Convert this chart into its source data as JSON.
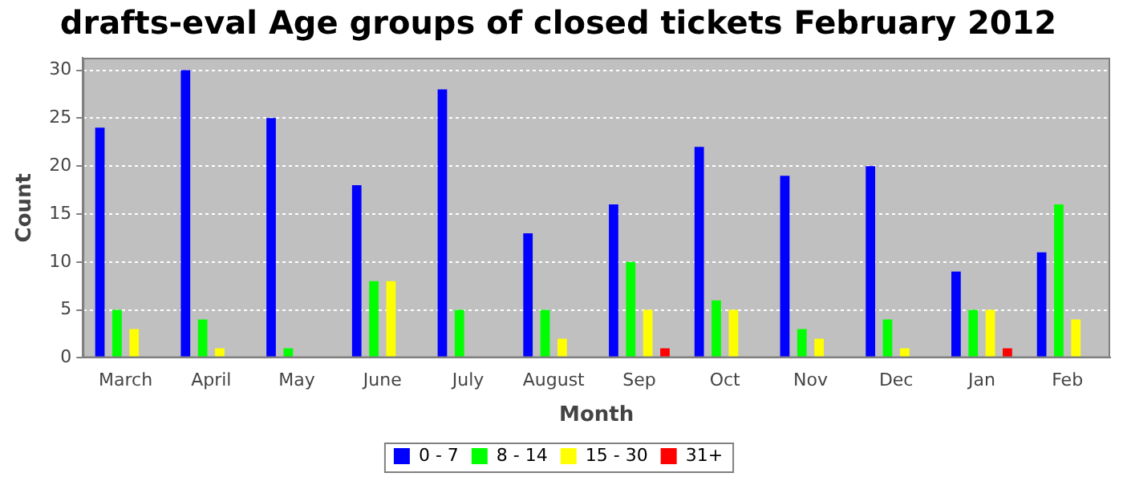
{
  "chart_data": {
    "type": "bar",
    "title": "drafts-eval Age groups of closed tickets February 2012",
    "xlabel": "Month",
    "ylabel": "Count",
    "categories": [
      "March",
      "April",
      "May",
      "June",
      "July",
      "August",
      "Sep",
      "Oct",
      "Nov",
      "Dec",
      "Jan",
      "Feb"
    ],
    "series": [
      {
        "name": "0 - 7",
        "color": "#0000ff",
        "values": [
          24,
          30,
          25,
          18,
          28,
          13,
          16,
          22,
          19,
          20,
          9,
          11
        ]
      },
      {
        "name": "8 - 14",
        "color": "#00ff00",
        "values": [
          5,
          4,
          1,
          8,
          5,
          5,
          10,
          6,
          3,
          4,
          5,
          16
        ]
      },
      {
        "name": "15 - 30",
        "color": "#ffff00",
        "values": [
          3,
          1,
          0,
          8,
          0,
          2,
          5,
          5,
          2,
          1,
          5,
          4
        ]
      },
      {
        "name": "31+",
        "color": "#ff0000",
        "values": [
          0,
          0,
          0,
          0,
          0,
          0,
          1,
          0,
          0,
          0,
          1,
          0
        ]
      }
    ],
    "ylim": [
      0,
      31.3
    ],
    "yticks": [
      0,
      5,
      10,
      15,
      20,
      25,
      30
    ],
    "grid": "y",
    "legend": "bottom"
  }
}
